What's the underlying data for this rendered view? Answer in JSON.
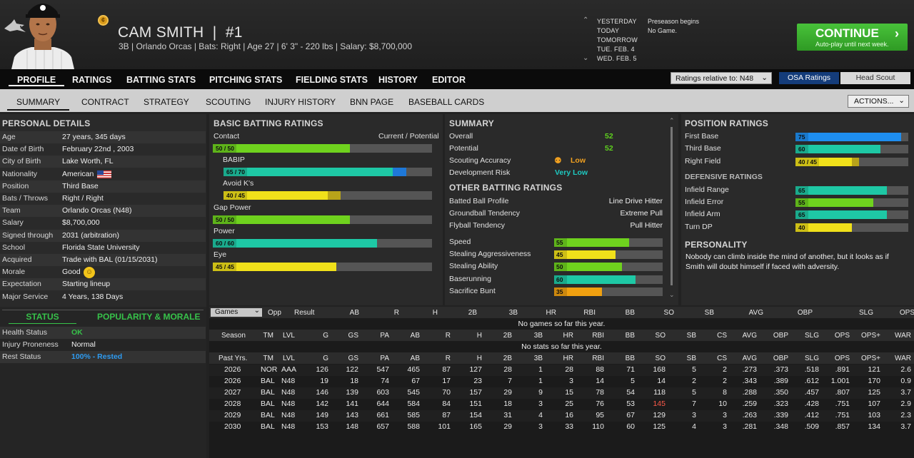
{
  "header": {
    "player_name": "CAM SMITH",
    "number": "#1",
    "info": "3B | Orlando Orcas | Bats: Right | Age 27 | 6' 3\" - 220 lbs | Salary: $8,700,000",
    "dates": [
      {
        "label": "YESTERDAY",
        "event": "Preseason begins"
      },
      {
        "label": "TODAY",
        "event": "No Game."
      },
      {
        "label": "TOMORROW",
        "event": ""
      },
      {
        "label": "TUE. FEB. 4",
        "event": ""
      },
      {
        "label": "WED. FEB. 5",
        "event": ""
      }
    ],
    "continue_label": "CONTINUE",
    "continue_sub": "Auto-play until next week."
  },
  "tabs_main": [
    "PROFILE",
    "RATINGS",
    "BATTING STATS",
    "PITCHING STATS",
    "FIELDING STATS",
    "HISTORY",
    "EDITOR"
  ],
  "ratings_relative": "Ratings relative to: N48",
  "osa_ratings": "OSA Ratings",
  "head_scout": "Head Scout",
  "tabs_sub": [
    "SUMMARY",
    "CONTRACT",
    "STRATEGY",
    "SCOUTING",
    "INJURY HISTORY",
    "BNN PAGE",
    "BASEBALL CARDS"
  ],
  "actions": "ACTIONS...",
  "personal": {
    "title": "PERSONAL DETAILS",
    "rows": [
      {
        "k": "Age",
        "v": "27 years, 345 days"
      },
      {
        "k": "Date of Birth",
        "v": "February 22nd , 2003"
      },
      {
        "k": "City of Birth",
        "v": "Lake Worth, FL"
      },
      {
        "k": "Nationality",
        "v": "American"
      },
      {
        "k": "Position",
        "v": "Third Base"
      },
      {
        "k": "Bats / Throws",
        "v": "Right / Right"
      },
      {
        "k": "Team",
        "v": "Orlando Orcas (N48)"
      },
      {
        "k": "Salary",
        "v": "$8,700,000"
      },
      {
        "k": "Signed through",
        "v": "2031 (arbitration)"
      },
      {
        "k": "School",
        "v": "Florida State University"
      },
      {
        "k": "Acquired",
        "v": "Trade with BAL (01/15/2031)"
      },
      {
        "k": "Morale",
        "v": "Good"
      },
      {
        "k": "Expectation",
        "v": "Starting lineup"
      },
      {
        "k": "Major Service",
        "v": "4 Years, 138 Days"
      }
    ]
  },
  "status": {
    "tab_status": "STATUS",
    "tab_pop": "POPULARITY & MORALE",
    "rows": [
      {
        "k": "Health Status",
        "v": "OK",
        "color": "#37c24a"
      },
      {
        "k": "Injury Proneness",
        "v": "Normal",
        "color": "#f0f0f0"
      },
      {
        "k": "Rest Status",
        "v": "100% - Rested",
        "color": "#2e9bf0"
      }
    ]
  },
  "batting": {
    "title": "BASIC BATTING RATINGS",
    "header_right": "Current / Potential",
    "items": [
      {
        "name": "Contact",
        "tag": "50 / 50",
        "cur": 50,
        "pot": 50,
        "color": "#6fd21e",
        "indent": false
      },
      {
        "name": "BABIP",
        "tag": "65 / 70",
        "cur": 65,
        "pot": 70,
        "color": "#1ec8a5",
        "indent": true
      },
      {
        "name": "Avoid K's",
        "tag": "40 / 45",
        "cur": 40,
        "pot": 45,
        "color": "#f0e01a",
        "indent": true
      },
      {
        "name": "Gap Power",
        "tag": "50 / 50",
        "cur": 50,
        "pot": 50,
        "color": "#6fd21e",
        "indent": false
      },
      {
        "name": "Power",
        "tag": "60 / 60",
        "cur": 60,
        "pot": 60,
        "color": "#1ec8a5",
        "indent": false
      },
      {
        "name": "Eye",
        "tag": "45 / 45",
        "cur": 45,
        "pot": 45,
        "color": "#f0e01a",
        "indent": false
      }
    ]
  },
  "summary": {
    "title": "SUMMARY",
    "rows": [
      {
        "k": "Overall",
        "v": "52",
        "color": "#5fd21e"
      },
      {
        "k": "Potential",
        "v": "52",
        "color": "#5fd21e"
      },
      {
        "k": "Scouting Accuracy",
        "v": "Low",
        "color": "#f0a020"
      },
      {
        "k": "Development Risk",
        "v": "Very Low",
        "color": "#1ec8c0"
      }
    ],
    "other_title": "OTHER BATTING RATINGS",
    "other": [
      {
        "k": "Batted Ball Profile",
        "v": "Line Drive Hitter"
      },
      {
        "k": "Groundball Tendency",
        "v": "Extreme Pull"
      },
      {
        "k": "Flyball Tendency",
        "v": "Pull Hitter"
      }
    ],
    "bars": [
      {
        "k": "Speed",
        "v": 55,
        "color": "#6fd21e"
      },
      {
        "k": "Stealing Aggressiveness",
        "v": 45,
        "color": "#f0e01a"
      },
      {
        "k": "Stealing Ability",
        "v": 50,
        "color": "#6fd21e"
      },
      {
        "k": "Baserunning",
        "v": 60,
        "color": "#1ec8a5"
      },
      {
        "k": "Sacrifice Bunt",
        "v": 35,
        "color": "#f0a010"
      }
    ]
  },
  "position": {
    "title": "POSITION RATINGS",
    "items": [
      {
        "k": "First Base",
        "tag": "75",
        "cur": 75,
        "pot": 75,
        "color": "#1e8ef0"
      },
      {
        "k": "Third Base",
        "tag": "60",
        "cur": 60,
        "pot": 60,
        "color": "#1ec8a5"
      },
      {
        "k": "Right Field",
        "tag": "40 / 45",
        "cur": 40,
        "pot": 45,
        "color": "#f0e01a"
      }
    ],
    "def_title": "DEFENSIVE RATINGS",
    "def": [
      {
        "k": "Infield Range",
        "tag": "65",
        "v": 65,
        "color": "#1ec8a5"
      },
      {
        "k": "Infield Error",
        "tag": "55",
        "v": 55,
        "color": "#6fd21e"
      },
      {
        "k": "Infield Arm",
        "tag": "65",
        "v": 65,
        "color": "#1ec8a5"
      },
      {
        "k": "Turn DP",
        "tag": "40",
        "v": 40,
        "color": "#f0e01a"
      }
    ],
    "personality_title": "PERSONALITY",
    "personality_text": "Nobody can climb inside the mind of another, but it looks as if Smith will doubt himself if faced with adversity."
  },
  "games": {
    "select": "Games",
    "cols": [
      "Opp",
      "Result",
      "AB",
      "R",
      "H",
      "2B",
      "3B",
      "HR",
      "RBI",
      "BB",
      "SO",
      "SB",
      "AVG",
      "OBP",
      "SLG",
      "OPS"
    ],
    "empty": "No games so far this year."
  },
  "season": {
    "cols": [
      "Season",
      "TM",
      "LVL",
      "G",
      "GS",
      "PA",
      "AB",
      "R",
      "H",
      "2B",
      "3B",
      "HR",
      "RBI",
      "BB",
      "SO",
      "SB",
      "CS",
      "AVG",
      "OBP",
      "SLG",
      "OPS",
      "OPS+",
      "WAR"
    ],
    "empty": "No stats so far this year.",
    "past_cols": [
      "Past Yrs.",
      "TM",
      "LVL",
      "G",
      "GS",
      "PA",
      "AB",
      "R",
      "H",
      "2B",
      "3B",
      "HR",
      "RBI",
      "BB",
      "SO",
      "SB",
      "CS",
      "AVG",
      "OBP",
      "SLG",
      "OPS",
      "OPS+",
      "WAR"
    ],
    "rows": [
      [
        "2026",
        "NOR",
        "AAA",
        "126",
        "122",
        "547",
        "465",
        "87",
        "127",
        "28",
        "1",
        "28",
        "88",
        "71",
        "168",
        "5",
        "2",
        ".273",
        ".373",
        ".518",
        ".891",
        "121",
        "2.6"
      ],
      [
        "2026",
        "BAL",
        "N48",
        "19",
        "18",
        "74",
        "67",
        "17",
        "23",
        "7",
        "1",
        "3",
        "14",
        "5",
        "14",
        "2",
        "2",
        ".343",
        ".389",
        ".612",
        "1.001",
        "170",
        "0.9"
      ],
      [
        "2027",
        "BAL",
        "N48",
        "146",
        "139",
        "603",
        "545",
        "70",
        "157",
        "29",
        "9",
        "15",
        "78",
        "54",
        "118",
        "5",
        "8",
        ".288",
        ".350",
        ".457",
        ".807",
        "125",
        "3.7"
      ],
      [
        "2028",
        "BAL",
        "N48",
        "142",
        "141",
        "644",
        "584",
        "84",
        "151",
        "18",
        "3",
        "25",
        "76",
        "53",
        "145",
        "7",
        "10",
        ".259",
        ".323",
        ".428",
        ".751",
        "107",
        "2.9"
      ],
      [
        "2029",
        "BAL",
        "N48",
        "149",
        "143",
        "661",
        "585",
        "87",
        "154",
        "31",
        "4",
        "16",
        "95",
        "67",
        "129",
        "3",
        "3",
        ".263",
        ".339",
        ".412",
        ".751",
        "103",
        "2.3"
      ],
      [
        "2030",
        "BAL",
        "N48",
        "153",
        "148",
        "657",
        "588",
        "101",
        "165",
        "29",
        "3",
        "33",
        "110",
        "60",
        "125",
        "4",
        "3",
        ".281",
        ".348",
        ".509",
        ".857",
        "134",
        "3.7"
      ]
    ],
    "highlight_color": "#ff5a4a"
  }
}
